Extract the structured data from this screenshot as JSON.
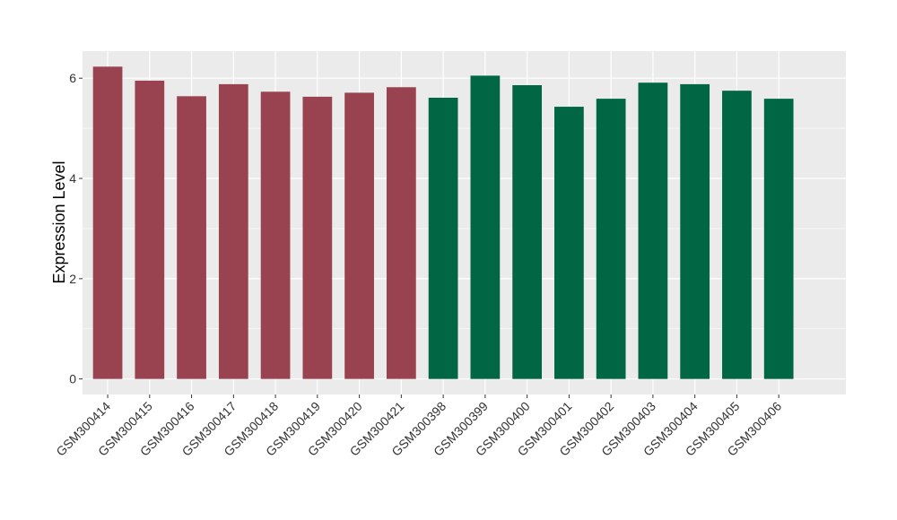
{
  "chart_data": {
    "type": "bar",
    "y_label": "Expression Level",
    "categories": [
      "GSM300414",
      "GSM300415",
      "GSM300416",
      "GSM300417",
      "GSM300418",
      "GSM300419",
      "GSM300420",
      "GSM300421",
      "GSM300398",
      "GSM300399",
      "GSM300400",
      "GSM300401",
      "GSM300402",
      "GSM300403",
      "GSM300404",
      "GSM300405",
      "GSM300406"
    ],
    "values": [
      6.23,
      5.95,
      5.64,
      5.88,
      5.73,
      5.63,
      5.71,
      5.82,
      5.61,
      6.05,
      5.86,
      5.43,
      5.59,
      5.91,
      5.88,
      5.75,
      5.59
    ],
    "colors": [
      "#9a4350",
      "#9a4350",
      "#9a4350",
      "#9a4350",
      "#9a4350",
      "#9a4350",
      "#9a4350",
      "#9a4350",
      "#006644",
      "#006644",
      "#006644",
      "#006644",
      "#006644",
      "#006644",
      "#006644",
      "#006644",
      "#006644"
    ],
    "ylim": [
      -0.31,
      6.54
    ],
    "yticks": [
      0,
      2,
      4,
      6
    ],
    "grid": true
  }
}
